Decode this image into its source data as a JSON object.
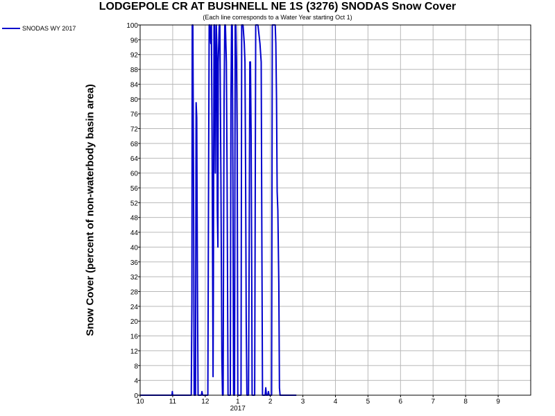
{
  "chart_data": {
    "type": "line",
    "title": "LODGEPOLE CR AT BUSHNELL NE 1S (3276) SNODAS Snow Cover",
    "subtitle": "(Each line corresponds to a Water Year starting Oct 1)",
    "ylabel": "Snow Cover (percent of non-waterbody basin area)",
    "xlabel": "",
    "legend_position": "top-left",
    "grid": true,
    "ylim": [
      0,
      100
    ],
    "yticks": [
      0,
      4,
      8,
      12,
      16,
      20,
      24,
      28,
      32,
      36,
      40,
      44,
      48,
      52,
      56,
      60,
      64,
      68,
      72,
      76,
      80,
      84,
      88,
      92,
      96,
      100
    ],
    "xlim": [
      0,
      12
    ],
    "xticks": [
      {
        "x": 0,
        "label": "10"
      },
      {
        "x": 1,
        "label": "11"
      },
      {
        "x": 2,
        "label": "12"
      },
      {
        "x": 3,
        "label": "1"
      },
      {
        "x": 4,
        "label": "2"
      },
      {
        "x": 5,
        "label": "3"
      },
      {
        "x": 6,
        "label": "4"
      },
      {
        "x": 7,
        "label": "5"
      },
      {
        "x": 8,
        "label": "6"
      },
      {
        "x": 9,
        "label": "7"
      },
      {
        "x": 10,
        "label": "8"
      },
      {
        "x": 11,
        "label": "9"
      }
    ],
    "secondary_xlabels": [
      {
        "x": 3,
        "label": "2017"
      }
    ],
    "series": [
      {
        "name": "SNODAS WY 2017",
        "color": "#0000cc",
        "points": [
          [
            0,
            0
          ],
          [
            0.98,
            0
          ],
          [
            0.99,
            1
          ],
          [
            1.0,
            0
          ],
          [
            1.57,
            0
          ],
          [
            1.59,
            25
          ],
          [
            1.6,
            100
          ],
          [
            1.62,
            100
          ],
          [
            1.64,
            60
          ],
          [
            1.66,
            0
          ],
          [
            1.7,
            0
          ],
          [
            1.72,
            79
          ],
          [
            1.74,
            75
          ],
          [
            1.76,
            30
          ],
          [
            1.78,
            0
          ],
          [
            1.88,
            0
          ],
          [
            1.9,
            1
          ],
          [
            1.92,
            0
          ],
          [
            2.08,
            0
          ],
          [
            2.1,
            50
          ],
          [
            2.12,
            100
          ],
          [
            2.14,
            100
          ],
          [
            2.17,
            95
          ],
          [
            2.19,
            100
          ],
          [
            2.21,
            70
          ],
          [
            2.24,
            5
          ],
          [
            2.25,
            30
          ],
          [
            2.27,
            100
          ],
          [
            2.29,
            100
          ],
          [
            2.31,
            60
          ],
          [
            2.32,
            75
          ],
          [
            2.34,
            100
          ],
          [
            2.36,
            92
          ],
          [
            2.37,
            50
          ],
          [
            2.39,
            40
          ],
          [
            2.4,
            90
          ],
          [
            2.43,
            100
          ],
          [
            2.45,
            100
          ],
          [
            2.48,
            60
          ],
          [
            2.51,
            10
          ],
          [
            2.53,
            0
          ],
          [
            2.55,
            0
          ],
          [
            2.58,
            80
          ],
          [
            2.6,
            100
          ],
          [
            2.62,
            100
          ],
          [
            2.65,
            90
          ],
          [
            2.67,
            60
          ],
          [
            2.7,
            0
          ],
          [
            2.77,
            0
          ],
          [
            2.79,
            80
          ],
          [
            2.81,
            100
          ],
          [
            2.83,
            100
          ],
          [
            2.85,
            60
          ],
          [
            2.87,
            0
          ],
          [
            2.9,
            0
          ],
          [
            2.92,
            100
          ],
          [
            2.94,
            100
          ],
          [
            2.96,
            90
          ],
          [
            2.98,
            70
          ],
          [
            3.0,
            0
          ],
          [
            3.1,
            0
          ],
          [
            3.12,
            100
          ],
          [
            3.16,
            100
          ],
          [
            3.2,
            95
          ],
          [
            3.22,
            90
          ],
          [
            3.24,
            60
          ],
          [
            3.26,
            20
          ],
          [
            3.28,
            0
          ],
          [
            3.33,
            0
          ],
          [
            3.35,
            40
          ],
          [
            3.37,
            90
          ],
          [
            3.39,
            90
          ],
          [
            3.41,
            70
          ],
          [
            3.43,
            30
          ],
          [
            3.44,
            0
          ],
          [
            3.52,
            0
          ],
          [
            3.55,
            100
          ],
          [
            3.62,
            100
          ],
          [
            3.68,
            95
          ],
          [
            3.72,
            90
          ],
          [
            3.74,
            40
          ],
          [
            3.76,
            0
          ],
          [
            3.84,
            0
          ],
          [
            3.86,
            2
          ],
          [
            3.88,
            0
          ],
          [
            3.92,
            0
          ],
          [
            3.94,
            1
          ],
          [
            3.96,
            0
          ],
          [
            4.04,
            0
          ],
          [
            4.06,
            100
          ],
          [
            4.15,
            100
          ],
          [
            4.17,
            95
          ],
          [
            4.19,
            80
          ],
          [
            4.21,
            55
          ],
          [
            4.23,
            50
          ],
          [
            4.26,
            30
          ],
          [
            4.28,
            2
          ],
          [
            4.3,
            0
          ],
          [
            4.8,
            0
          ]
        ]
      }
    ]
  }
}
